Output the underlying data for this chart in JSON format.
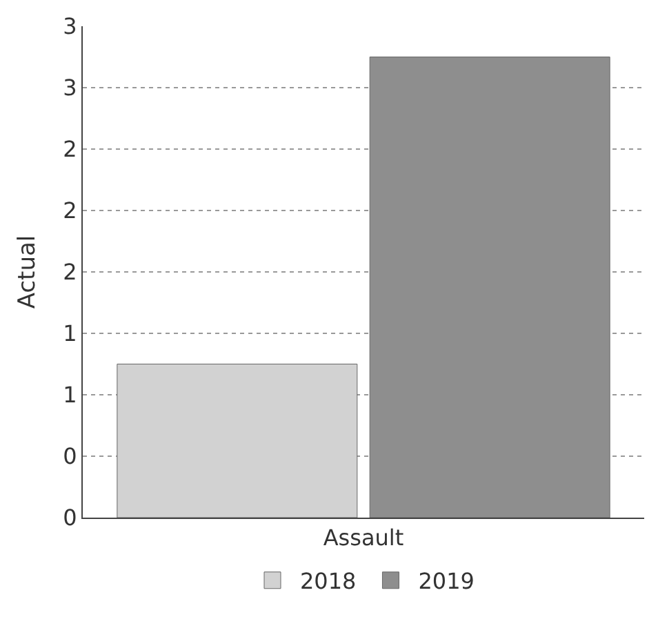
{
  "chart_data": {
    "type": "bar",
    "ylabel": "Actual",
    "categories": [
      "Assault"
    ],
    "series": [
      {
        "name": "2018",
        "color": "#d2d2d2",
        "values": [
          1
        ]
      },
      {
        "name": "2019",
        "color": "#8e8e8e",
        "values": [
          3
        ]
      }
    ],
    "ylim": [
      0,
      3.2
    ],
    "yticks": [
      0,
      {
        "value": 0.4,
        "label": "0"
      },
      {
        "value": 0.8,
        "label": "1"
      },
      {
        "value": 1.2,
        "label": "1"
      },
      {
        "value": 1.6,
        "label": "2"
      },
      {
        "value": 2.0,
        "label": "2"
      },
      {
        "value": 2.4,
        "label": "2"
      },
      {
        "value": 2.8,
        "label": "3"
      },
      {
        "value": 3.2,
        "label": "3"
      }
    ],
    "grid": "y",
    "legend": "bottom"
  }
}
